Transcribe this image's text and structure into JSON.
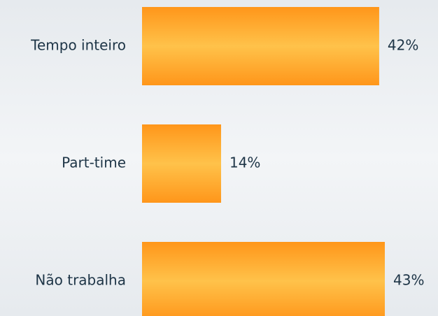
{
  "chart_data": {
    "type": "bar",
    "orientation": "horizontal",
    "categories": [
      "Tempo inteiro",
      "Part-time",
      "Não trabalha"
    ],
    "values": [
      42,
      14,
      43
    ],
    "value_labels": [
      "42%",
      "14%",
      "43%"
    ]
  }
}
